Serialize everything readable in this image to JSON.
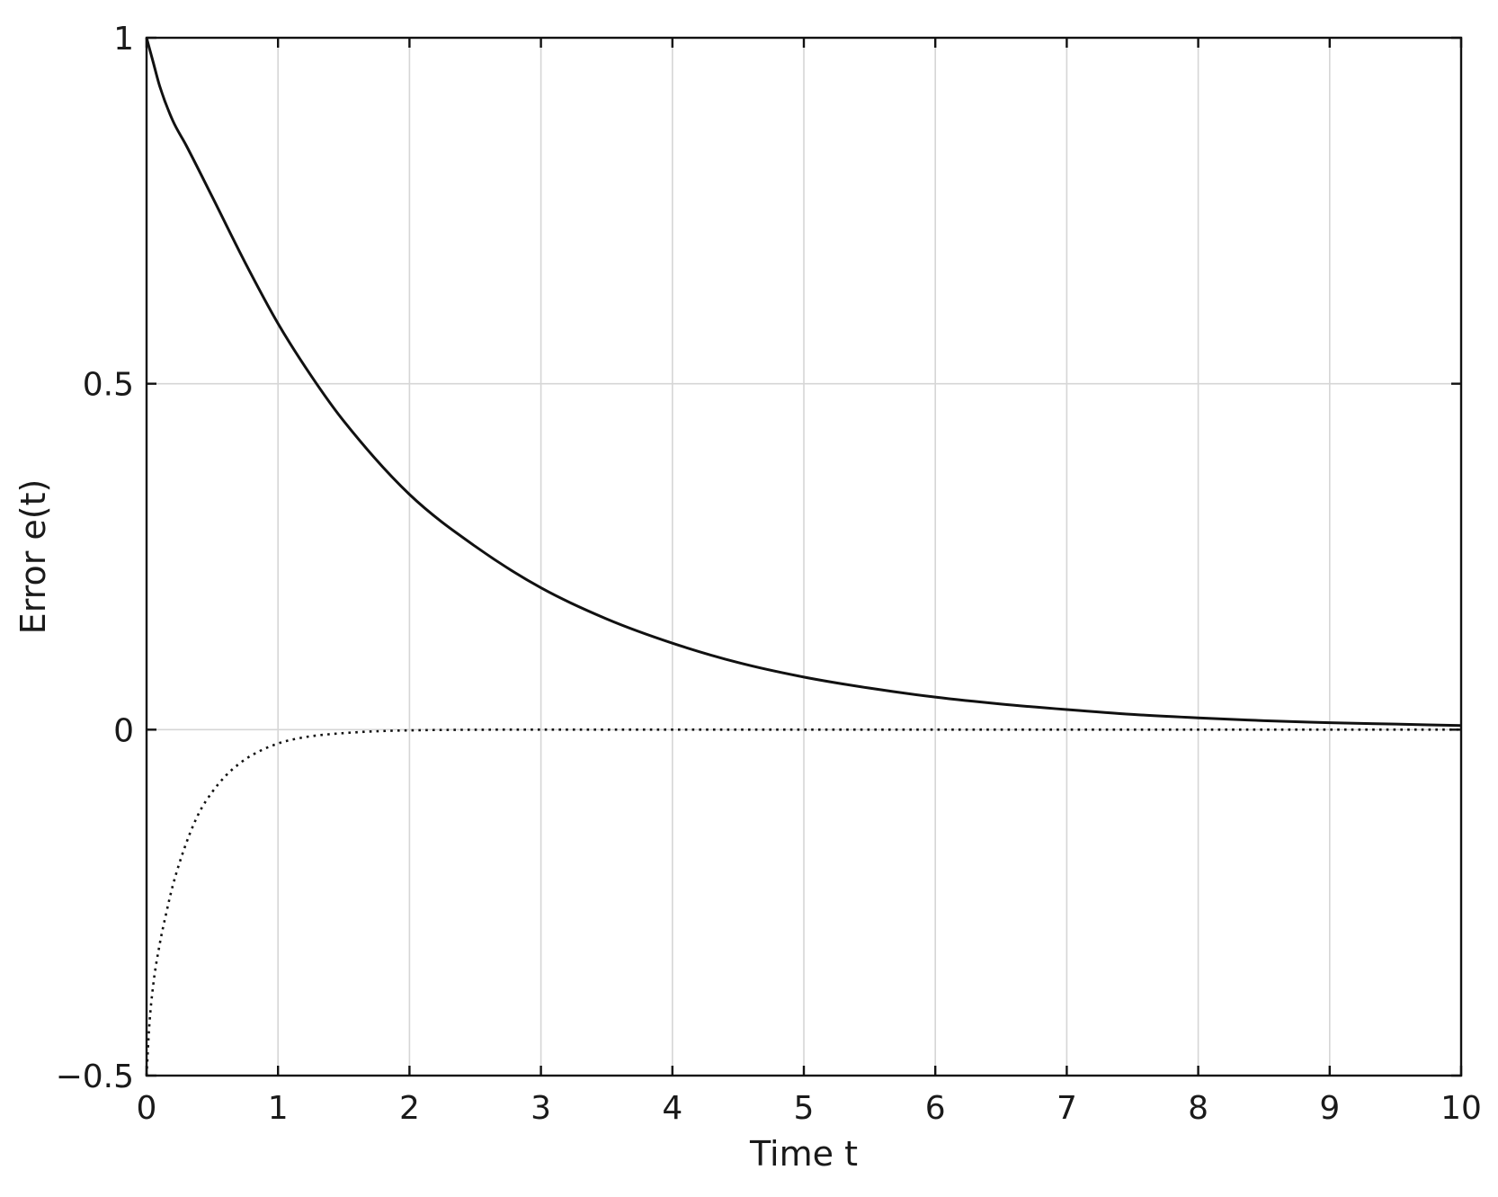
{
  "chart_data": {
    "type": "line",
    "title": "",
    "xlabel": "Time t",
    "ylabel": "Error e(t)",
    "xlim": [
      0,
      10
    ],
    "ylim": [
      -0.5,
      1
    ],
    "x_ticks": [
      {
        "value": 0,
        "label": "0"
      },
      {
        "value": 1,
        "label": "1"
      },
      {
        "value": 2,
        "label": "2"
      },
      {
        "value": 3,
        "label": "3"
      },
      {
        "value": 4,
        "label": "4"
      },
      {
        "value": 5,
        "label": "5"
      },
      {
        "value": 6,
        "label": "6"
      },
      {
        "value": 7,
        "label": "7"
      },
      {
        "value": 8,
        "label": "8"
      },
      {
        "value": 9,
        "label": "9"
      },
      {
        "value": 10,
        "label": "10"
      }
    ],
    "y_ticks": [
      {
        "value": -0.5,
        "label": "−0.5"
      },
      {
        "value": 0,
        "label": "0"
      },
      {
        "value": 0.5,
        "label": "0.5"
      },
      {
        "value": 1,
        "label": "1"
      }
    ],
    "grid": true,
    "legend": "none",
    "series": [
      {
        "style": "solid",
        "color": "#111111",
        "x": [
          0,
          0.05,
          0.1,
          0.2,
          0.3,
          0.5,
          0.75,
          1,
          1.25,
          1.5,
          2,
          2.5,
          3,
          3.5,
          4,
          4.5,
          5,
          5.5,
          6,
          6.5,
          7,
          7.5,
          8,
          8.5,
          9,
          9.5,
          10
        ],
        "y": [
          1.0,
          0.965,
          0.93,
          0.88,
          0.845,
          0.77,
          0.675,
          0.587,
          0.512,
          0.446,
          0.34,
          0.265,
          0.205,
          0.16,
          0.125,
          0.097,
          0.076,
          0.06,
          0.047,
          0.037,
          0.029,
          0.022,
          0.017,
          0.013,
          0.01,
          0.008,
          0.006
        ]
      },
      {
        "style": "dotted",
        "color": "#111111",
        "x": [
          0,
          0.02,
          0.05,
          0.1,
          0.15,
          0.2,
          0.3,
          0.4,
          0.5,
          0.6,
          0.7,
          0.8,
          1,
          1.2,
          1.5,
          2,
          3,
          4,
          5,
          6,
          7,
          8,
          9,
          10
        ],
        "y": [
          -0.5,
          -0.43,
          -0.37,
          -0.31,
          -0.265,
          -0.225,
          -0.165,
          -0.12,
          -0.09,
          -0.067,
          -0.05,
          -0.037,
          -0.02,
          -0.011,
          -0.005,
          -0.001,
          0,
          0,
          0,
          0,
          0,
          0,
          0,
          0
        ]
      }
    ]
  }
}
